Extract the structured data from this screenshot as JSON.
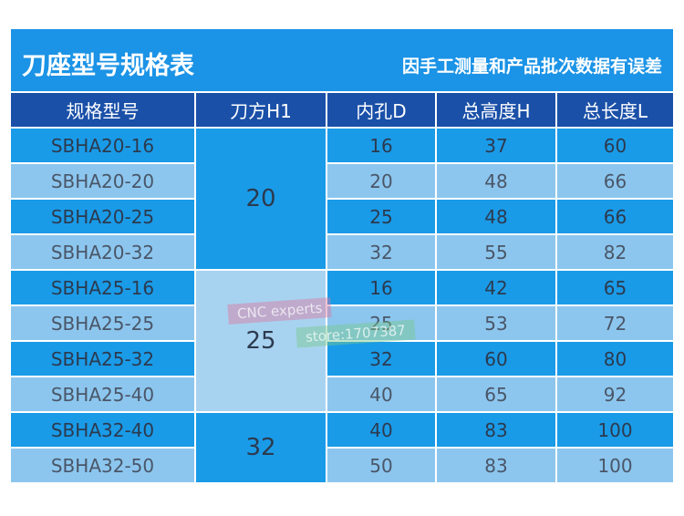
{
  "header": {
    "title": "刀座型号规格表",
    "note": "因手工测量和产品批次数据有误差"
  },
  "table": {
    "columns": [
      "规格型号",
      "刀方H1",
      "内孔D",
      "总高度H",
      "总长度L"
    ],
    "groups": [
      {
        "h1": "20",
        "rows": [
          [
            "SBHA20-16",
            "16",
            "37",
            "60"
          ],
          [
            "SBHA20-20",
            "20",
            "48",
            "66"
          ],
          [
            "SBHA20-25",
            "25",
            "48",
            "66"
          ],
          [
            "SBHA20-32",
            "32",
            "55",
            "82"
          ]
        ]
      },
      {
        "h1": "25",
        "rows": [
          [
            "SBHA25-16",
            "16",
            "42",
            "65"
          ],
          [
            "SBHA25-25",
            "25",
            "53",
            "72"
          ],
          [
            "SBHA25-32",
            "32",
            "60",
            "80"
          ],
          [
            "SBHA25-40",
            "40",
            "65",
            "92"
          ]
        ]
      },
      {
        "h1": "32",
        "rows": [
          [
            "SBHA32-40",
            "40",
            "83",
            "100"
          ],
          [
            "SBHA32-50",
            "50",
            "83",
            "100"
          ]
        ]
      }
    ]
  },
  "watermark": [
    "CNC experts",
    "store:1707387"
  ]
}
